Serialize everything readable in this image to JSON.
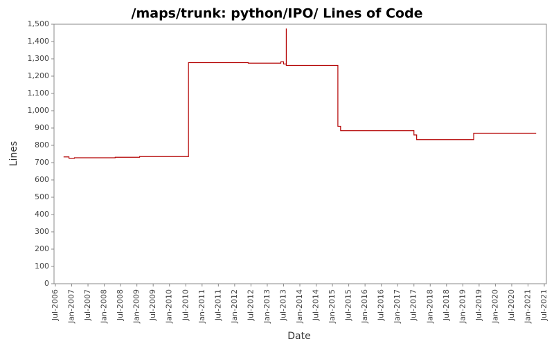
{
  "chart_data": {
    "type": "line",
    "title": "/maps/trunk: python/IPO/ Lines of Code",
    "x_label": "Date",
    "y_label": "Lines",
    "x": [
      "2006-10",
      "2006-12",
      "2006-12",
      "2007-02",
      "2007-02",
      "2008-05",
      "2008-05",
      "2009-02",
      "2009-02",
      "2010-08",
      "2010-08",
      "2012-06",
      "2012-06",
      "2013-06",
      "2013-06",
      "2013-07",
      "2013-07",
      "2013-08",
      "2013-08",
      "2013-08",
      "2015-03",
      "2015-03",
      "2015-04",
      "2015-04",
      "2017-07",
      "2017-07",
      "2017-08",
      "2017-08",
      "2019-05",
      "2019-05",
      "2021-04"
    ],
    "series": [
      {
        "name": "Lines",
        "color": "#b30000",
        "values": [
          733,
          733,
          725,
          725,
          728,
          728,
          731,
          731,
          735,
          735,
          1278,
          1278,
          1275,
          1275,
          1283,
          1283,
          1270,
          1270,
          1475,
          1262,
          1262,
          910,
          910,
          885,
          885,
          860,
          860,
          833,
          833,
          870,
          870
        ]
      }
    ],
    "xlim": [
      "2006-07",
      "2021-07"
    ],
    "xticks": [
      {
        "value": "2006-07",
        "label": "Jul-2006"
      },
      {
        "value": "2007-01",
        "label": "Jan-2007"
      },
      {
        "value": "2007-07",
        "label": "Jul-2007"
      },
      {
        "value": "2008-01",
        "label": "Jan-2008"
      },
      {
        "value": "2008-07",
        "label": "Jul-2008"
      },
      {
        "value": "2009-01",
        "label": "Jan-2009"
      },
      {
        "value": "2009-07",
        "label": "Jul-2009"
      },
      {
        "value": "2010-01",
        "label": "Jan-2010"
      },
      {
        "value": "2010-07",
        "label": "Jul-2010"
      },
      {
        "value": "2011-01",
        "label": "Jan-2011"
      },
      {
        "value": "2011-07",
        "label": "Jul-2011"
      },
      {
        "value": "2012-01",
        "label": "Jan-2012"
      },
      {
        "value": "2012-07",
        "label": "Jul-2012"
      },
      {
        "value": "2013-01",
        "label": "Jan-2013"
      },
      {
        "value": "2013-07",
        "label": "Jul-2013"
      },
      {
        "value": "2014-01",
        "label": "Jan-2014"
      },
      {
        "value": "2014-07",
        "label": "Jul-2014"
      },
      {
        "value": "2015-01",
        "label": "Jan-2015"
      },
      {
        "value": "2015-07",
        "label": "Jul-2015"
      },
      {
        "value": "2016-01",
        "label": "Jan-2016"
      },
      {
        "value": "2016-07",
        "label": "Jul-2016"
      },
      {
        "value": "2017-01",
        "label": "Jan-2017"
      },
      {
        "value": "2017-07",
        "label": "Jul-2017"
      },
      {
        "value": "2018-01",
        "label": "Jan-2018"
      },
      {
        "value": "2018-07",
        "label": "Jul-2018"
      },
      {
        "value": "2019-01",
        "label": "Jan-2019"
      },
      {
        "value": "2019-07",
        "label": "Jul-2019"
      },
      {
        "value": "2020-01",
        "label": "Jan-2020"
      },
      {
        "value": "2020-07",
        "label": "Jul-2020"
      },
      {
        "value": "2021-01",
        "label": "Jan-2021"
      },
      {
        "value": "2021-07",
        "label": "Jul-2021"
      }
    ],
    "ylim": [
      0,
      1500
    ],
    "yticks": [
      0,
      100,
      200,
      300,
      400,
      500,
      600,
      700,
      800,
      900,
      {
        "value": 1000,
        "label": "1,000"
      },
      {
        "value": 1100,
        "label": "1,100"
      },
      {
        "value": 1200,
        "label": "1,200"
      },
      {
        "value": 1300,
        "label": "1,300"
      },
      {
        "value": 1400,
        "label": "1,400"
      },
      {
        "value": 1500,
        "label": "1,500"
      }
    ],
    "grid": false
  }
}
